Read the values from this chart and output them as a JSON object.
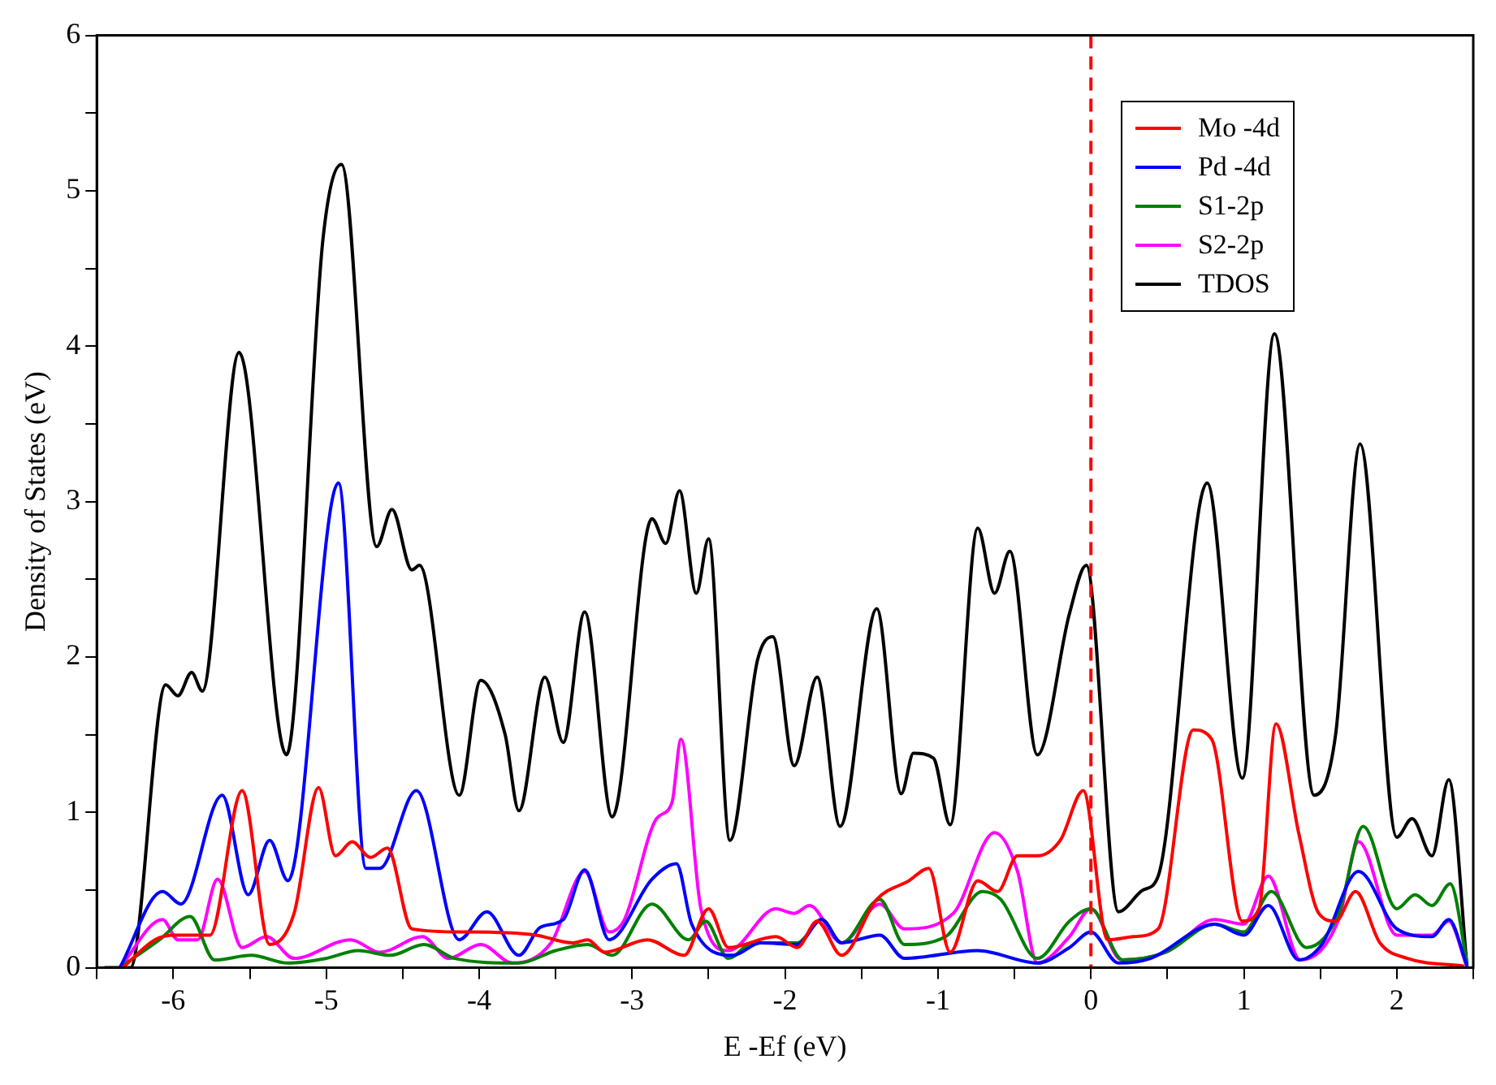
{
  "chart_data": {
    "type": "line",
    "xlabel": "E -Ef (eV)",
    "ylabel": "Density of States (eV)",
    "xlim": [
      -6.5,
      2.5
    ],
    "ylim": [
      0,
      6
    ],
    "xticks": [
      {
        "value": -6.5,
        "label": null
      },
      -6,
      {
        "value": -5.5,
        "label": null
      },
      -5,
      {
        "value": -4.5,
        "label": null
      },
      -4,
      {
        "value": -3.5,
        "label": null
      },
      -3,
      {
        "value": -2.5,
        "label": null
      },
      -2,
      {
        "value": -1.5,
        "label": null
      },
      -1,
      {
        "value": -0.5,
        "label": null
      },
      0,
      {
        "value": 0.5,
        "label": null
      },
      1,
      {
        "value": 1.5,
        "label": null
      },
      2,
      {
        "value": 2.5,
        "label": null
      }
    ],
    "yticks": [
      0,
      {
        "value": 0.5,
        "label": null
      },
      1,
      {
        "value": 1.5,
        "label": null
      },
      2,
      {
        "value": 2.5,
        "label": null
      },
      3,
      {
        "value": 3.5,
        "label": null
      },
      4,
      {
        "value": 4.5,
        "label": null
      },
      5,
      {
        "value": 5.5,
        "label": null
      },
      6
    ],
    "grid": false,
    "legend": "top right",
    "marker": "none",
    "line_style": "solid",
    "ref_lines": [
      {
        "axis": "x",
        "value": 0,
        "color": "#ff0000",
        "line_style": "dashed"
      }
    ],
    "series": [
      {
        "name": "Mo -4d",
        "color": "#ff0000",
        "x": [
          -6.33,
          -6.12,
          -5.99,
          -5.76,
          -5.55,
          -5.37,
          -5.21,
          -5.05,
          -4.94,
          -4.83,
          -4.71,
          -4.6,
          -4.44,
          -4.1,
          -3.63,
          -3.39,
          -3.29,
          -3.18,
          -2.9,
          -2.66,
          -2.5,
          -2.37,
          -2.06,
          -1.92,
          -1.79,
          -1.63,
          -1.4,
          -1.19,
          -1.06,
          -0.92,
          -0.74,
          -0.61,
          -0.48,
          -0.35,
          -0.2,
          -0.05,
          0.11,
          0.28,
          0.44,
          0.67,
          0.79,
          0.99,
          1.1,
          1.21,
          1.36,
          1.49,
          1.6,
          1.73,
          1.89,
          2.07,
          2.44
        ],
        "values": [
          0,
          0.18,
          0.21,
          0.21,
          1.14,
          0.15,
          0.35,
          1.16,
          0.72,
          0.81,
          0.71,
          0.77,
          0.25,
          0.23,
          0.21,
          0.16,
          0.18,
          0.1,
          0.18,
          0.08,
          0.38,
          0.13,
          0.2,
          0.13,
          0.3,
          0.08,
          0.44,
          0.56,
          0.64,
          0.1,
          0.56,
          0.49,
          0.72,
          0.72,
          0.82,
          1.14,
          0.18,
          0.2,
          0.25,
          1.53,
          1.47,
          0.3,
          0.38,
          1.57,
          0.86,
          0.35,
          0.3,
          0.49,
          0.16,
          0.06,
          0.01
        ]
      },
      {
        "name": "Pd -4d",
        "color": "#0000ff",
        "x": [
          -6.35,
          -6.07,
          -5.95,
          -5.68,
          -5.51,
          -5.37,
          -5.25,
          -4.92,
          -4.74,
          -4.65,
          -4.41,
          -4.13,
          -3.95,
          -3.74,
          -3.6,
          -3.45,
          -3.31,
          -3.15,
          -2.87,
          -2.71,
          -2.61,
          -2.34,
          -2.16,
          -1.92,
          -1.76,
          -1.63,
          -1.38,
          -1.22,
          -0.74,
          -0.35,
          -0.14,
          0,
          0.18,
          0.39,
          0.81,
          1,
          1.16,
          1.36,
          1.51,
          1.75,
          2,
          2.23,
          2.34,
          2.46
        ],
        "values": [
          0,
          0.49,
          0.41,
          1.11,
          0.47,
          0.82,
          0.56,
          3.12,
          0.64,
          0.64,
          1.14,
          0.18,
          0.36,
          0.08,
          0.26,
          0.31,
          0.63,
          0.18,
          0.57,
          0.67,
          0.28,
          0.08,
          0.16,
          0.15,
          0.31,
          0.16,
          0.21,
          0.06,
          0.11,
          0.03,
          0.13,
          0.23,
          0.03,
          0.06,
          0.28,
          0.21,
          0.4,
          0.05,
          0.15,
          0.62,
          0.25,
          0.2,
          0.31,
          0.01
        ]
      },
      {
        "name": "S1-2p",
        "color": "#008000",
        "x": [
          -6.35,
          -6.09,
          -5.89,
          -5.73,
          -5.49,
          -5.25,
          -5,
          -4.79,
          -4.58,
          -4.36,
          -4.16,
          -3.74,
          -3.5,
          -3.29,
          -3.13,
          -2.87,
          -2.63,
          -2.52,
          -2.37,
          -2.21,
          -1.92,
          -1.76,
          -1.63,
          -1.38,
          -1.22,
          -0.95,
          -0.71,
          -0.59,
          -0.35,
          -0.14,
          0,
          0.21,
          0.49,
          0.81,
          1,
          1.18,
          1.41,
          1.62,
          1.78,
          2,
          2.12,
          2.23,
          2.35,
          2.46
        ],
        "values": [
          0,
          0.18,
          0.33,
          0.05,
          0.08,
          0.03,
          0.06,
          0.11,
          0.08,
          0.15,
          0.06,
          0.03,
          0.11,
          0.15,
          0.08,
          0.41,
          0.18,
          0.3,
          0.06,
          0.16,
          0.16,
          0.31,
          0.16,
          0.44,
          0.15,
          0.2,
          0.49,
          0.44,
          0.06,
          0.3,
          0.38,
          0.05,
          0.1,
          0.28,
          0.23,
          0.49,
          0.13,
          0.35,
          0.91,
          0.38,
          0.47,
          0.4,
          0.54,
          0.03
        ]
      },
      {
        "name": "S2-2p",
        "color": "#ff00ff",
        "x": [
          -6.35,
          -6.07,
          -5.97,
          -5.84,
          -5.71,
          -5.55,
          -5.39,
          -5.21,
          -4.84,
          -4.65,
          -4.37,
          -4.2,
          -3.99,
          -3.78,
          -3.53,
          -3.31,
          -3.15,
          -3.05,
          -2.84,
          -2.74,
          -2.68,
          -2.55,
          -2.37,
          -2.06,
          -1.94,
          -1.84,
          -1.63,
          -1.38,
          -1.22,
          -0.9,
          -0.63,
          -0.48,
          -0.35,
          -0.14,
          0,
          0.2,
          0.49,
          0.81,
          1,
          1.16,
          1.37,
          1.62,
          1.75,
          2,
          2.23,
          2.34,
          2.46
        ],
        "values": [
          0,
          0.31,
          0.18,
          0.18,
          0.57,
          0.13,
          0.2,
          0.06,
          0.18,
          0.1,
          0.2,
          0.06,
          0.15,
          0.03,
          0.16,
          0.62,
          0.23,
          0.31,
          0.96,
          1.06,
          1.47,
          0.38,
          0.11,
          0.38,
          0.35,
          0.4,
          0.16,
          0.41,
          0.25,
          0.35,
          0.87,
          0.62,
          0.03,
          0.2,
          0.38,
          0.05,
          0.1,
          0.31,
          0.28,
          0.59,
          0.05,
          0.31,
          0.81,
          0.21,
          0.21,
          0.3,
          0
        ]
      },
      {
        "name": "TDOS",
        "color": "#000000",
        "x": [
          -6.45,
          -6.28,
          -6.05,
          -5.97,
          -5.88,
          -5.81,
          -5.57,
          -5.26,
          -5.02,
          -4.9,
          -4.67,
          -4.57,
          -4.44,
          -4.39,
          -4.13,
          -3.99,
          -3.83,
          -3.74,
          -3.57,
          -3.45,
          -3.31,
          -3.13,
          -2.87,
          -2.78,
          -2.69,
          -2.58,
          -2.5,
          -2.36,
          -2.18,
          -2.08,
          -1.94,
          -1.79,
          -1.64,
          -1.4,
          -1.24,
          -1.16,
          -1.03,
          -0.92,
          -0.74,
          -0.63,
          -0.53,
          -0.35,
          -0.14,
          -0.03,
          0.18,
          0.34,
          0.44,
          0.76,
          0.99,
          1.2,
          1.46,
          1.6,
          1.76,
          2,
          2.1,
          2.23,
          2.34,
          2.46
        ],
        "values": [
          0,
          0,
          1.82,
          1.75,
          1.9,
          1.78,
          3.96,
          1.37,
          4.7,
          5.17,
          2.71,
          2.95,
          2.56,
          2.59,
          1.11,
          1.85,
          1.5,
          1.01,
          1.87,
          1.45,
          2.29,
          0.97,
          2.89,
          2.73,
          3.07,
          2.41,
          2.76,
          0.82,
          1.98,
          2.13,
          1.3,
          1.87,
          0.91,
          2.31,
          1.12,
          1.38,
          1.35,
          0.92,
          2.83,
          2.41,
          2.68,
          1.37,
          2.28,
          2.59,
          0.36,
          0.5,
          0.59,
          3.12,
          1.22,
          4.08,
          1.11,
          1.5,
          3.37,
          0.84,
          0.96,
          0.72,
          1.21,
          0
        ]
      }
    ]
  }
}
